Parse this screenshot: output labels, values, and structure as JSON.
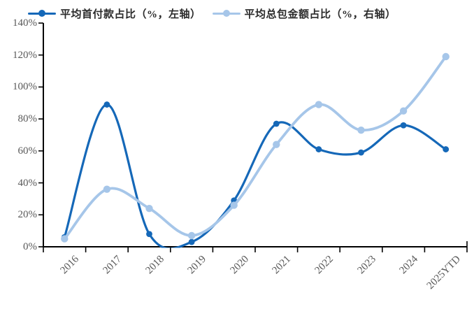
{
  "legend": {
    "items_note": "legend labels bind to chart_data.series names"
  },
  "chart_data": {
    "type": "line",
    "smooth": true,
    "grid": false,
    "legend_position": "top",
    "categories": [
      "2016",
      "2017",
      "2018",
      "2019",
      "2020",
      "2021",
      "2022",
      "2023",
      "2024",
      "2025YTD"
    ],
    "series": [
      {
        "name": "平均首付款占比（%，左轴）",
        "axis": "left",
        "color": "#1568b8",
        "values": [
          6,
          89,
          8,
          3,
          29,
          77,
          61,
          59,
          76,
          61
        ]
      },
      {
        "name": "平均总包金额占比（%，右轴）",
        "axis": "right",
        "color": "#a6c6e9",
        "values": [
          5,
          36,
          24,
          7,
          26,
          64,
          89,
          73,
          85,
          119
        ]
      }
    ],
    "y_axis": {
      "tick_labels": [
        "0%",
        "20%",
        "40%",
        "60%",
        "80%",
        "100%",
        "120%",
        "140%"
      ],
      "min": 0,
      "max": 140
    },
    "right_axis_labels_visible": false,
    "axis_color": "#000000",
    "tick_label_color": "#595959",
    "title": ""
  }
}
